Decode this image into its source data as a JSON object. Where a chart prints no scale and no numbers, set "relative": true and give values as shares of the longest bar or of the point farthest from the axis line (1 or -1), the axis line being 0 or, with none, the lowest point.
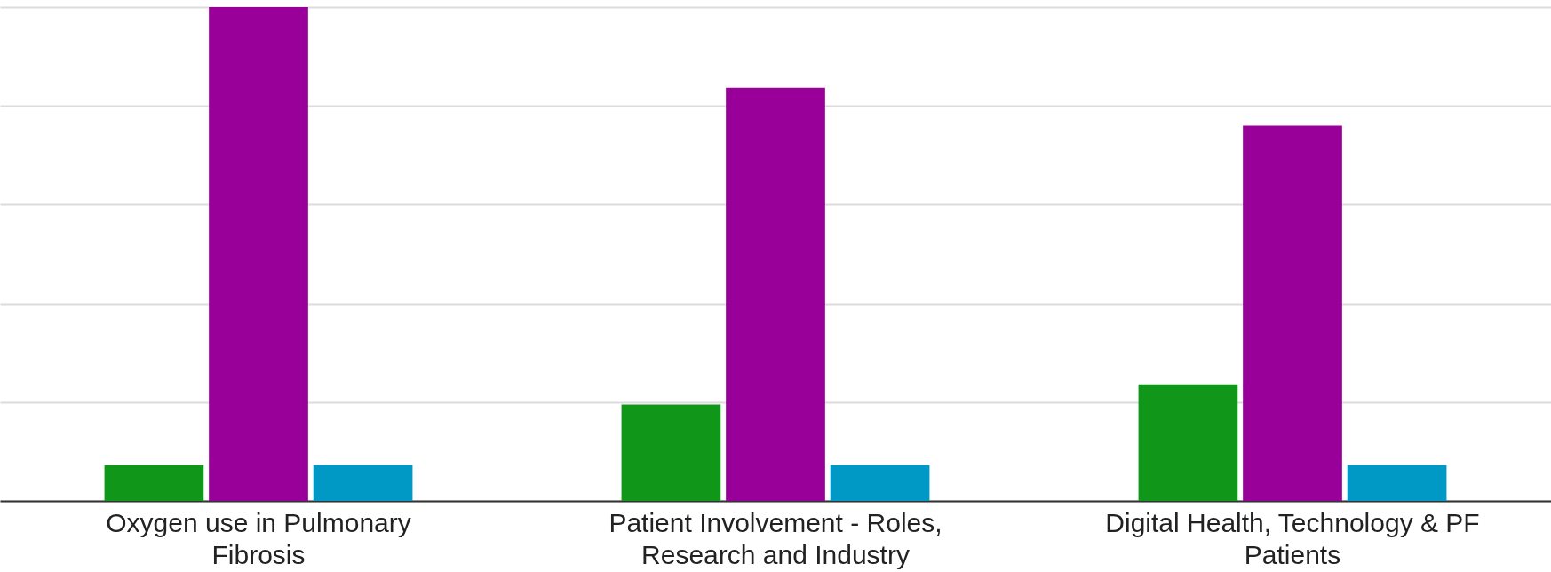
{
  "chart_data": {
    "type": "bar",
    "relative": true,
    "grid": "y",
    "categories": [
      "Oxygen use in Pulmonary Fibrosis",
      "Patient Involvement - Roles, Research and Industry",
      "Digital Health, Technology & PF Patients"
    ],
    "series": [
      {
        "color": "#109618",
        "values": [
          0.073,
          0.195,
          0.236
        ]
      },
      {
        "color": "#990099",
        "values": [
          1,
          0.837,
          0.76
        ]
      },
      {
        "color": "#0099c6",
        "values": [
          0.073,
          0.073,
          0.073
        ]
      }
    ]
  }
}
